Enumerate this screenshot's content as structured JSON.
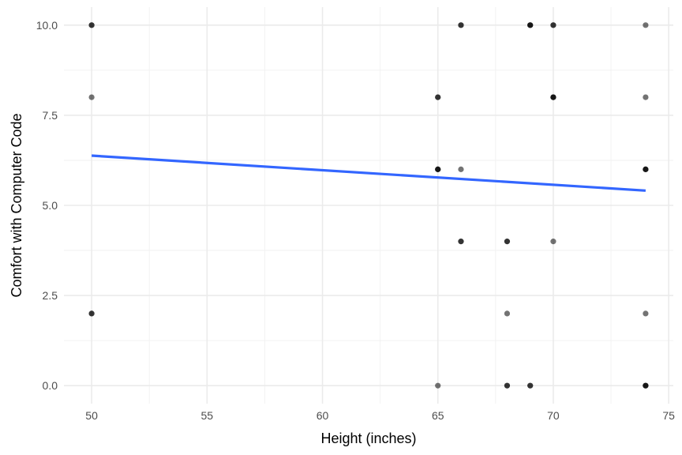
{
  "chart_data": {
    "type": "scatter",
    "title": "",
    "xlabel": "Height (inches)",
    "ylabel": "Comfort with Computer Code",
    "xlim": [
      48.8,
      75.2
    ],
    "ylim": [
      -0.5,
      10.5
    ],
    "x_ticks": [
      50,
      55,
      60,
      65,
      70,
      75
    ],
    "x_tick_labels": [
      "50",
      "55",
      "60",
      "65",
      "70",
      "75"
    ],
    "y_ticks": [
      0,
      2.5,
      5,
      7.5,
      10
    ],
    "y_tick_labels": [
      "0.0",
      "2.5",
      "5.0",
      "7.5",
      "10.0"
    ],
    "grid": true,
    "legend": "none",
    "point_color": "#000000",
    "point_opacity": 0.55,
    "points": [
      {
        "x": 50,
        "y": 10,
        "n": 2
      },
      {
        "x": 50,
        "y": 8,
        "n": 1
      },
      {
        "x": 50,
        "y": 2,
        "n": 2
      },
      {
        "x": 65,
        "y": 8,
        "n": 2
      },
      {
        "x": 65,
        "y": 6,
        "n": 3
      },
      {
        "x": 65,
        "y": 0,
        "n": 1
      },
      {
        "x": 66,
        "y": 10,
        "n": 2
      },
      {
        "x": 66,
        "y": 6,
        "n": 1
      },
      {
        "x": 66,
        "y": 4,
        "n": 2
      },
      {
        "x": 68,
        "y": 4,
        "n": 2
      },
      {
        "x": 68,
        "y": 2,
        "n": 1
      },
      {
        "x": 68,
        "y": 0,
        "n": 2
      },
      {
        "x": 69,
        "y": 10,
        "n": 3
      },
      {
        "x": 69,
        "y": 0,
        "n": 2
      },
      {
        "x": 70,
        "y": 10,
        "n": 2
      },
      {
        "x": 70,
        "y": 8,
        "n": 3
      },
      {
        "x": 70,
        "y": 4,
        "n": 1
      },
      {
        "x": 74,
        "y": 10,
        "n": 1
      },
      {
        "x": 74,
        "y": 8,
        "n": 1
      },
      {
        "x": 74,
        "y": 6,
        "n": 3
      },
      {
        "x": 74,
        "y": 2,
        "n": 1
      },
      {
        "x": 74,
        "y": 0,
        "n": 3
      }
    ],
    "trend_line": {
      "color": "#3366FF",
      "x": [
        50,
        74
      ],
      "y": [
        6.38,
        5.41
      ]
    }
  }
}
